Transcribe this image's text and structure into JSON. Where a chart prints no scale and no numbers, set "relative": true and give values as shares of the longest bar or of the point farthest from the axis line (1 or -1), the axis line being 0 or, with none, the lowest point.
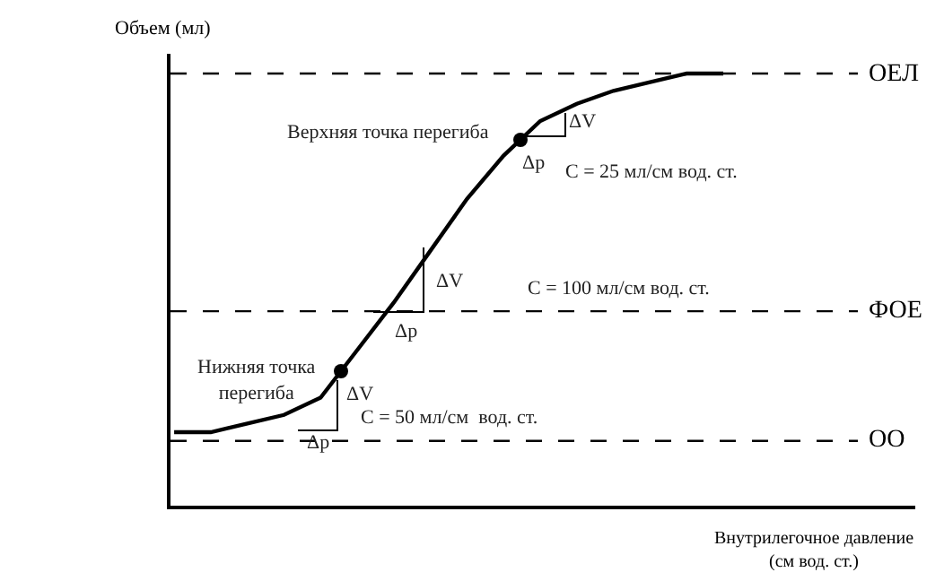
{
  "chart_data": {
    "type": "line",
    "relative": true,
    "ylabel": "Объем (мл)",
    "xlabel": "Внутрилегочное давление\n(см вод. ст.)",
    "categories": [
      null,
      null,
      null,
      null,
      null,
      null,
      null,
      null,
      null,
      null,
      null,
      null,
      null,
      null,
      null,
      null
    ],
    "series": [
      {
        "color": "#000000",
        "values": [
          0.17,
          0.17,
          0.19,
          0.21,
          0.25,
          0.36,
          0.47,
          0.59,
          0.71,
          0.81,
          0.89,
          0.93,
          0.96,
          0.98,
          1.0,
          1.0
        ]
      }
    ],
    "ref_lines": [
      {
        "axis": "y",
        "value": 1.0,
        "label": "ОЕЛ",
        "color": "#000000",
        "line_style": "dashed"
      },
      {
        "axis": "y",
        "value": 0.45,
        "label": "ФОЕ",
        "color": "#000000",
        "line_style": "dashed"
      },
      {
        "axis": "y",
        "value": 0.15,
        "label": "ОО",
        "color": "#000000",
        "line_style": "dashed"
      }
    ],
    "annotations": [
      "Верхняя точка перегиба",
      "ΔV",
      "Δp",
      "C = 25 мл/см вод. ст.",
      "ΔV",
      "C = 100 мл/см вод. ст.",
      "Δp",
      "Нижняя точка\nперегиба",
      "ΔV",
      "C = 50 мл/см  вод. ст.",
      "Δp"
    ]
  }
}
